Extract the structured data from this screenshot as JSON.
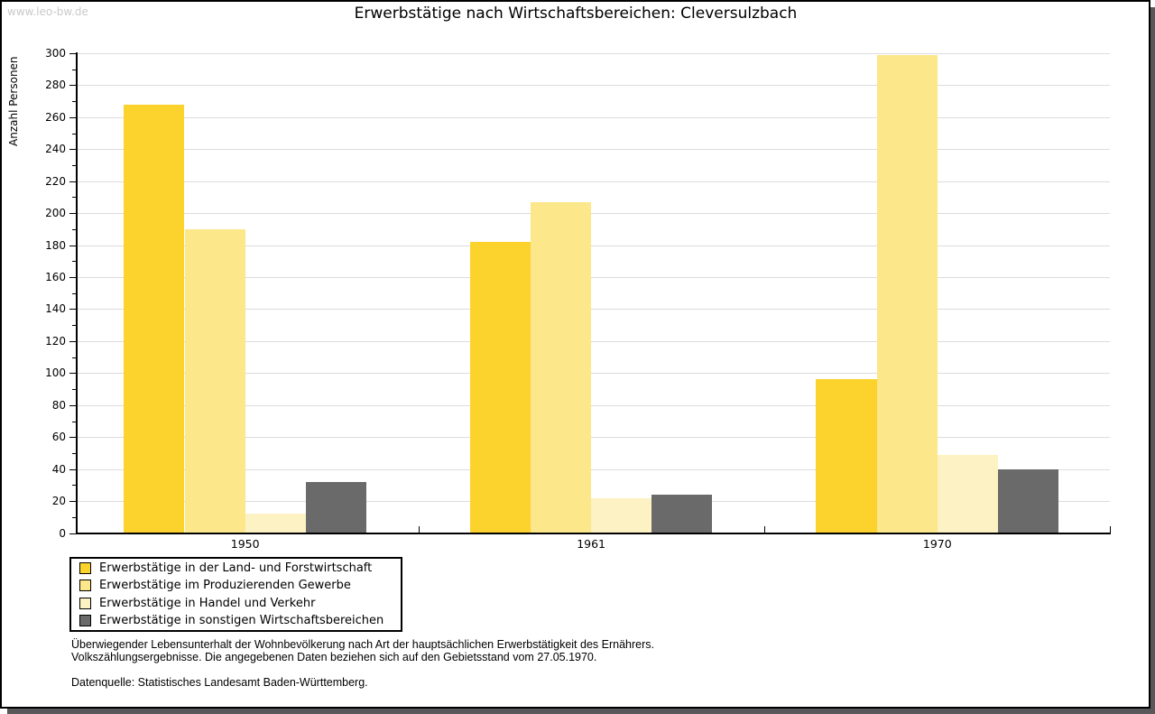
{
  "watermark": "www.leo-bw.de",
  "title": "Erwerbstätige nach Wirtschaftsbereichen: Cleversulzbach",
  "chart_data": {
    "type": "bar",
    "title": "Erwerbstätige nach Wirtschaftsbereichen: Cleversulzbach",
    "xlabel": "",
    "ylabel": "Anzahl Personen",
    "ylim": [
      0,
      300
    ],
    "ytick_step": 20,
    "yminor_step": 10,
    "grid": "horizontal",
    "gridline_color": "#dcdcdc",
    "legend_position": "bottom-left",
    "categories": [
      "1950",
      "1961",
      "1970"
    ],
    "series": [
      {
        "name": "Erwerbstätige in der Land- und Forstwirtschaft",
        "color": "#fcd32d",
        "values": [
          268,
          182,
          96
        ]
      },
      {
        "name": "Erwerbstätige im Produzierenden Gewerbe",
        "color": "#fce78a",
        "values": [
          190,
          207,
          299
        ]
      },
      {
        "name": "Erwerbstätige in Handel und Verkehr",
        "color": "#fcf2c3",
        "values": [
          12,
          22,
          49
        ]
      },
      {
        "name": "Erwerbstätige in sonstigen Wirtschaftsbereichen",
        "color": "#6a6a6a",
        "values": [
          32,
          24,
          40
        ]
      }
    ]
  },
  "footer": {
    "note_line1": "Überwiegender Lebensunterhalt der Wohnbevölkerung nach Art der hauptsächlichen Erwerbstätigkeit des Ernährers.",
    "note_line2": "Volkszählungsergebnisse. Die angegebenen Daten beziehen sich auf den Gebietsstand vom 27.05.1970.",
    "source": "Datenquelle: Statistisches Landesamt Baden-Württemberg."
  }
}
